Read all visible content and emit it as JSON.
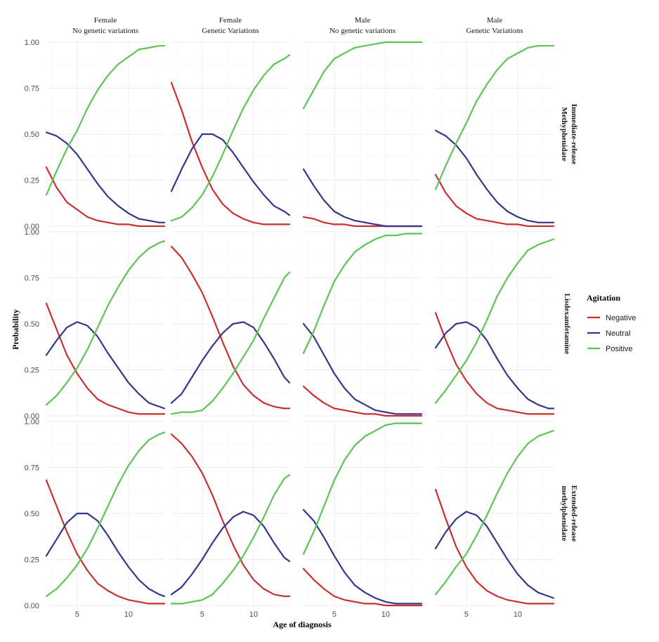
{
  "chart_data": {
    "type": "line",
    "xlabel": "Age of diagnosis",
    "ylabel": "Probability",
    "x_ticks": [
      5,
      10
    ],
    "y_ticks": [
      "0.00",
      "0.25",
      "0.50",
      "0.75",
      "1.00"
    ],
    "xlim": [
      2,
      13.5
    ],
    "ylim": [
      0,
      1
    ],
    "column_facets": [
      {
        "line1": "Female",
        "line2": "No genetic variations"
      },
      {
        "line1": "Female",
        "line2": "Genetic Variations"
      },
      {
        "line1": "Male",
        "line2": "No genetic variations"
      },
      {
        "line1": "Male",
        "line2": "Genetic Variations"
      }
    ],
    "row_facets": [
      {
        "line1": "Immediate-release",
        "line2": "Methyphenidate"
      },
      {
        "line1": "Lisdexamfetamine",
        "line2": ""
      },
      {
        "line1": "Extended-release",
        "line2": "methylphenidate"
      }
    ],
    "legend": {
      "title": "Agitation",
      "position": "right",
      "entries": [
        {
          "name": "Negative",
          "color": "#c8302f"
        },
        {
          "name": "Neutral",
          "color": "#35358c"
        },
        {
          "name": "Positive",
          "color": "#5cc452"
        }
      ]
    },
    "x": [
      2,
      3,
      4,
      5,
      6,
      7,
      8,
      9,
      10,
      11,
      12,
      13,
      13.5
    ],
    "panels": [
      {
        "row": 0,
        "col": 0,
        "series": [
          {
            "name": "Negative",
            "values": [
              0.32,
              0.21,
              0.13,
              0.09,
              0.05,
              0.03,
              0.02,
              0.01,
              0.01,
              0.0,
              0.0,
              0.0,
              0.0
            ]
          },
          {
            "name": "Neutral",
            "values": [
              0.51,
              0.49,
              0.45,
              0.39,
              0.31,
              0.23,
              0.16,
              0.11,
              0.07,
              0.04,
              0.03,
              0.02,
              0.02
            ]
          },
          {
            "name": "Positive",
            "values": [
              0.17,
              0.3,
              0.42,
              0.52,
              0.64,
              0.74,
              0.82,
              0.88,
              0.92,
              0.96,
              0.97,
              0.98,
              0.98
            ]
          }
        ]
      },
      {
        "row": 0,
        "col": 1,
        "series": [
          {
            "name": "Negative",
            "values": [
              0.78,
              0.63,
              0.46,
              0.32,
              0.2,
              0.12,
              0.07,
              0.04,
              0.02,
              0.01,
              0.01,
              0.01,
              0.01
            ]
          },
          {
            "name": "Neutral",
            "values": [
              0.19,
              0.31,
              0.42,
              0.5,
              0.5,
              0.47,
              0.4,
              0.32,
              0.24,
              0.17,
              0.11,
              0.08,
              0.06
            ]
          },
          {
            "name": "Positive",
            "values": [
              0.03,
              0.05,
              0.1,
              0.17,
              0.27,
              0.39,
              0.52,
              0.64,
              0.74,
              0.82,
              0.88,
              0.91,
              0.93
            ]
          }
        ]
      },
      {
        "row": 0,
        "col": 2,
        "series": [
          {
            "name": "Negative",
            "values": [
              0.05,
              0.04,
              0.02,
              0.01,
              0.01,
              0.0,
              0.0,
              0.0,
              0.0,
              0.0,
              0.0,
              0.0,
              0.0
            ]
          },
          {
            "name": "Neutral",
            "values": [
              0.31,
              0.22,
              0.14,
              0.08,
              0.05,
              0.03,
              0.02,
              0.01,
              0.0,
              0.0,
              0.0,
              0.0,
              0.0
            ]
          },
          {
            "name": "Positive",
            "values": [
              0.64,
              0.74,
              0.84,
              0.91,
              0.94,
              0.97,
              0.98,
              0.99,
              1.0,
              1.0,
              1.0,
              1.0,
              1.0
            ]
          }
        ]
      },
      {
        "row": 0,
        "col": 3,
        "series": [
          {
            "name": "Negative",
            "values": [
              0.28,
              0.18,
              0.11,
              0.07,
              0.04,
              0.03,
              0.02,
              0.01,
              0.01,
              0.0,
              0.0,
              0.0,
              0.0
            ]
          },
          {
            "name": "Neutral",
            "values": [
              0.52,
              0.49,
              0.44,
              0.37,
              0.28,
              0.2,
              0.13,
              0.08,
              0.05,
              0.03,
              0.02,
              0.02,
              0.02
            ]
          },
          {
            "name": "Positive",
            "values": [
              0.2,
              0.33,
              0.45,
              0.56,
              0.68,
              0.77,
              0.85,
              0.91,
              0.94,
              0.97,
              0.98,
              0.98,
              0.98
            ]
          }
        ]
      },
      {
        "row": 1,
        "col": 0,
        "series": [
          {
            "name": "Negative",
            "values": [
              0.61,
              0.47,
              0.33,
              0.23,
              0.15,
              0.09,
              0.06,
              0.04,
              0.02,
              0.01,
              0.01,
              0.01,
              0.01
            ]
          },
          {
            "name": "Neutral",
            "values": [
              0.33,
              0.41,
              0.48,
              0.51,
              0.49,
              0.43,
              0.34,
              0.26,
              0.18,
              0.12,
              0.07,
              0.05,
              0.04
            ]
          },
          {
            "name": "Positive",
            "values": [
              0.06,
              0.11,
              0.18,
              0.26,
              0.36,
              0.48,
              0.6,
              0.7,
              0.79,
              0.86,
              0.91,
              0.94,
              0.95
            ]
          }
        ]
      },
      {
        "row": 1,
        "col": 1,
        "series": [
          {
            "name": "Negative",
            "values": [
              0.92,
              0.86,
              0.77,
              0.67,
              0.54,
              0.4,
              0.27,
              0.17,
              0.11,
              0.07,
              0.05,
              0.04,
              0.04
            ]
          },
          {
            "name": "Neutral",
            "values": [
              0.07,
              0.12,
              0.21,
              0.3,
              0.38,
              0.45,
              0.5,
              0.51,
              0.48,
              0.4,
              0.31,
              0.21,
              0.18
            ]
          },
          {
            "name": "Positive",
            "values": [
              0.01,
              0.02,
              0.02,
              0.03,
              0.08,
              0.15,
              0.23,
              0.32,
              0.41,
              0.53,
              0.64,
              0.75,
              0.78
            ]
          }
        ]
      },
      {
        "row": 1,
        "col": 2,
        "series": [
          {
            "name": "Negative",
            "values": [
              0.16,
              0.11,
              0.07,
              0.04,
              0.03,
              0.02,
              0.01,
              0.01,
              0.0,
              0.0,
              0.0,
              0.0,
              0.0
            ]
          },
          {
            "name": "Neutral",
            "values": [
              0.5,
              0.43,
              0.33,
              0.23,
              0.15,
              0.09,
              0.06,
              0.03,
              0.02,
              0.01,
              0.01,
              0.01,
              0.01
            ]
          },
          {
            "name": "Positive",
            "values": [
              0.34,
              0.46,
              0.6,
              0.73,
              0.82,
              0.89,
              0.93,
              0.96,
              0.98,
              0.98,
              0.99,
              0.99,
              0.99
            ]
          }
        ]
      },
      {
        "row": 1,
        "col": 3,
        "series": [
          {
            "name": "Negative",
            "values": [
              0.56,
              0.41,
              0.28,
              0.19,
              0.12,
              0.07,
              0.04,
              0.03,
              0.02,
              0.01,
              0.01,
              0.01,
              0.01
            ]
          },
          {
            "name": "Neutral",
            "values": [
              0.37,
              0.45,
              0.5,
              0.51,
              0.48,
              0.41,
              0.31,
              0.22,
              0.15,
              0.09,
              0.06,
              0.04,
              0.04
            ]
          },
          {
            "name": "Positive",
            "values": [
              0.07,
              0.14,
              0.22,
              0.3,
              0.4,
              0.52,
              0.65,
              0.75,
              0.83,
              0.9,
              0.93,
              0.95,
              0.96
            ]
          }
        ]
      },
      {
        "row": 2,
        "col": 0,
        "series": [
          {
            "name": "Negative",
            "values": [
              0.68,
              0.54,
              0.4,
              0.28,
              0.19,
              0.12,
              0.08,
              0.05,
              0.03,
              0.02,
              0.01,
              0.01,
              0.01
            ]
          },
          {
            "name": "Neutral",
            "values": [
              0.27,
              0.36,
              0.45,
              0.5,
              0.5,
              0.46,
              0.38,
              0.29,
              0.21,
              0.14,
              0.09,
              0.06,
              0.05
            ]
          },
          {
            "name": "Positive",
            "values": [
              0.05,
              0.09,
              0.15,
              0.22,
              0.31,
              0.42,
              0.54,
              0.66,
              0.76,
              0.84,
              0.9,
              0.93,
              0.94
            ]
          }
        ]
      },
      {
        "row": 2,
        "col": 1,
        "series": [
          {
            "name": "Negative",
            "values": [
              0.93,
              0.88,
              0.81,
              0.72,
              0.6,
              0.46,
              0.33,
              0.22,
              0.14,
              0.09,
              0.06,
              0.05,
              0.05
            ]
          },
          {
            "name": "Neutral",
            "values": [
              0.06,
              0.1,
              0.17,
              0.25,
              0.34,
              0.42,
              0.48,
              0.51,
              0.49,
              0.43,
              0.34,
              0.26,
              0.24
            ]
          },
          {
            "name": "Positive",
            "values": [
              0.01,
              0.01,
              0.02,
              0.03,
              0.06,
              0.12,
              0.19,
              0.27,
              0.37,
              0.48,
              0.6,
              0.69,
              0.71
            ]
          }
        ]
      },
      {
        "row": 2,
        "col": 2,
        "series": [
          {
            "name": "Negative",
            "values": [
              0.2,
              0.14,
              0.09,
              0.05,
              0.03,
              0.02,
              0.01,
              0.01,
              0.0,
              0.0,
              0.0,
              0.0,
              0.0
            ]
          },
          {
            "name": "Neutral",
            "values": [
              0.52,
              0.46,
              0.37,
              0.27,
              0.18,
              0.11,
              0.07,
              0.04,
              0.02,
              0.01,
              0.01,
              0.01,
              0.01
            ]
          },
          {
            "name": "Positive",
            "values": [
              0.28,
              0.4,
              0.54,
              0.68,
              0.79,
              0.87,
              0.92,
              0.95,
              0.98,
              0.99,
              0.99,
              0.99,
              0.99
            ]
          }
        ]
      },
      {
        "row": 2,
        "col": 3,
        "series": [
          {
            "name": "Negative",
            "values": [
              0.63,
              0.47,
              0.32,
              0.21,
              0.13,
              0.08,
              0.05,
              0.03,
              0.02,
              0.01,
              0.01,
              0.01,
              0.01
            ]
          },
          {
            "name": "Neutral",
            "values": [
              0.31,
              0.4,
              0.47,
              0.51,
              0.49,
              0.43,
              0.34,
              0.25,
              0.17,
              0.11,
              0.07,
              0.05,
              0.04
            ]
          },
          {
            "name": "Positive",
            "values": [
              0.06,
              0.13,
              0.21,
              0.28,
              0.38,
              0.49,
              0.61,
              0.72,
              0.81,
              0.88,
              0.92,
              0.94,
              0.95
            ]
          }
        ]
      }
    ]
  }
}
